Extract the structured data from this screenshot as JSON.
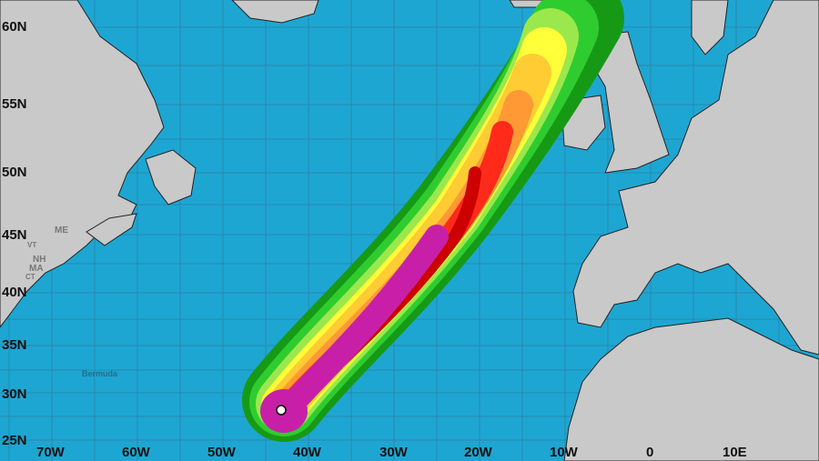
{
  "map": {
    "latitude_labels": [
      "60N",
      "55N",
      "50N",
      "45N",
      "40N",
      "35N",
      "30N",
      "25N"
    ],
    "longitude_labels": [
      "70W",
      "60W",
      "50W",
      "40W",
      "30W",
      "20W",
      "10W",
      "0",
      "10E"
    ],
    "place_labels": {
      "bermuda": "Bermuda"
    },
    "state_labels": [
      "ME",
      "NH",
      "MA",
      "VT",
      "CT"
    ],
    "colors": {
      "ocean": "#1ea6d2",
      "land": "#c9c9c9",
      "swath_bands": [
        "#169a16",
        "#2fcc2f",
        "#9be84c",
        "#ffff3a",
        "#ffcc33",
        "#ff9933",
        "#ff2a1a",
        "#cc0000",
        "#c81fa8"
      ]
    },
    "storm_position_marker": "white-circle"
  }
}
